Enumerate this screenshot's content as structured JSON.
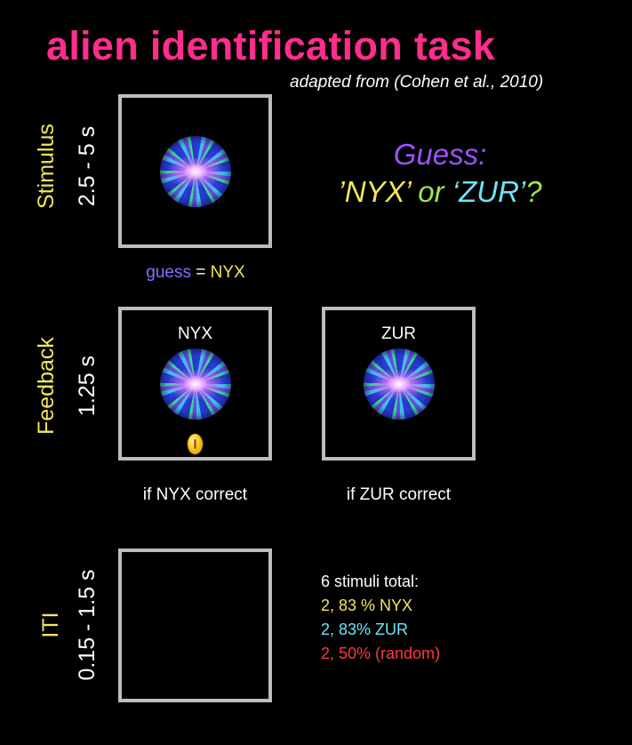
{
  "title": "alien identification task",
  "subtitle": "adapted from (Cohen et al., 2010)",
  "rows": {
    "stimulus": {
      "label": "Stimulus",
      "duration": "2.5 - 5 s"
    },
    "feedback": {
      "label": "Feedback",
      "duration": "1.25 s"
    },
    "iti": {
      "label": "ITI",
      "duration": "0.15 - 1.5 s"
    }
  },
  "prompt": {
    "heading": "Guess:",
    "option1": "’NYX’",
    "or": " or ",
    "option2": "‘ZUR’",
    "qmark": "?"
  },
  "guess_line": {
    "word": "guess",
    "eq": " = ",
    "value": "NYX"
  },
  "feedback_frames": [
    {
      "label": "NYX",
      "caption": "if NYX correct"
    },
    {
      "label": "ZUR",
      "caption": "if ZUR correct"
    }
  ],
  "stimuli_summary": {
    "header": "6 stimuli total:",
    "line1": "2, 83 % NYX",
    "line2": "2, 83% ZUR",
    "line3": "2, 50% (random)"
  },
  "colors": {
    "title": "#ff2d8c",
    "row_label": "#f3e65a",
    "frame_border": "#bdbdbd",
    "guess_heading": "#9d52ff",
    "nyx": "#f3e65a",
    "zur": "#6fe3f6",
    "random": "#ff3a3a"
  },
  "icons": [
    "alien-stimulus-icon",
    "gold-coin-icon"
  ]
}
